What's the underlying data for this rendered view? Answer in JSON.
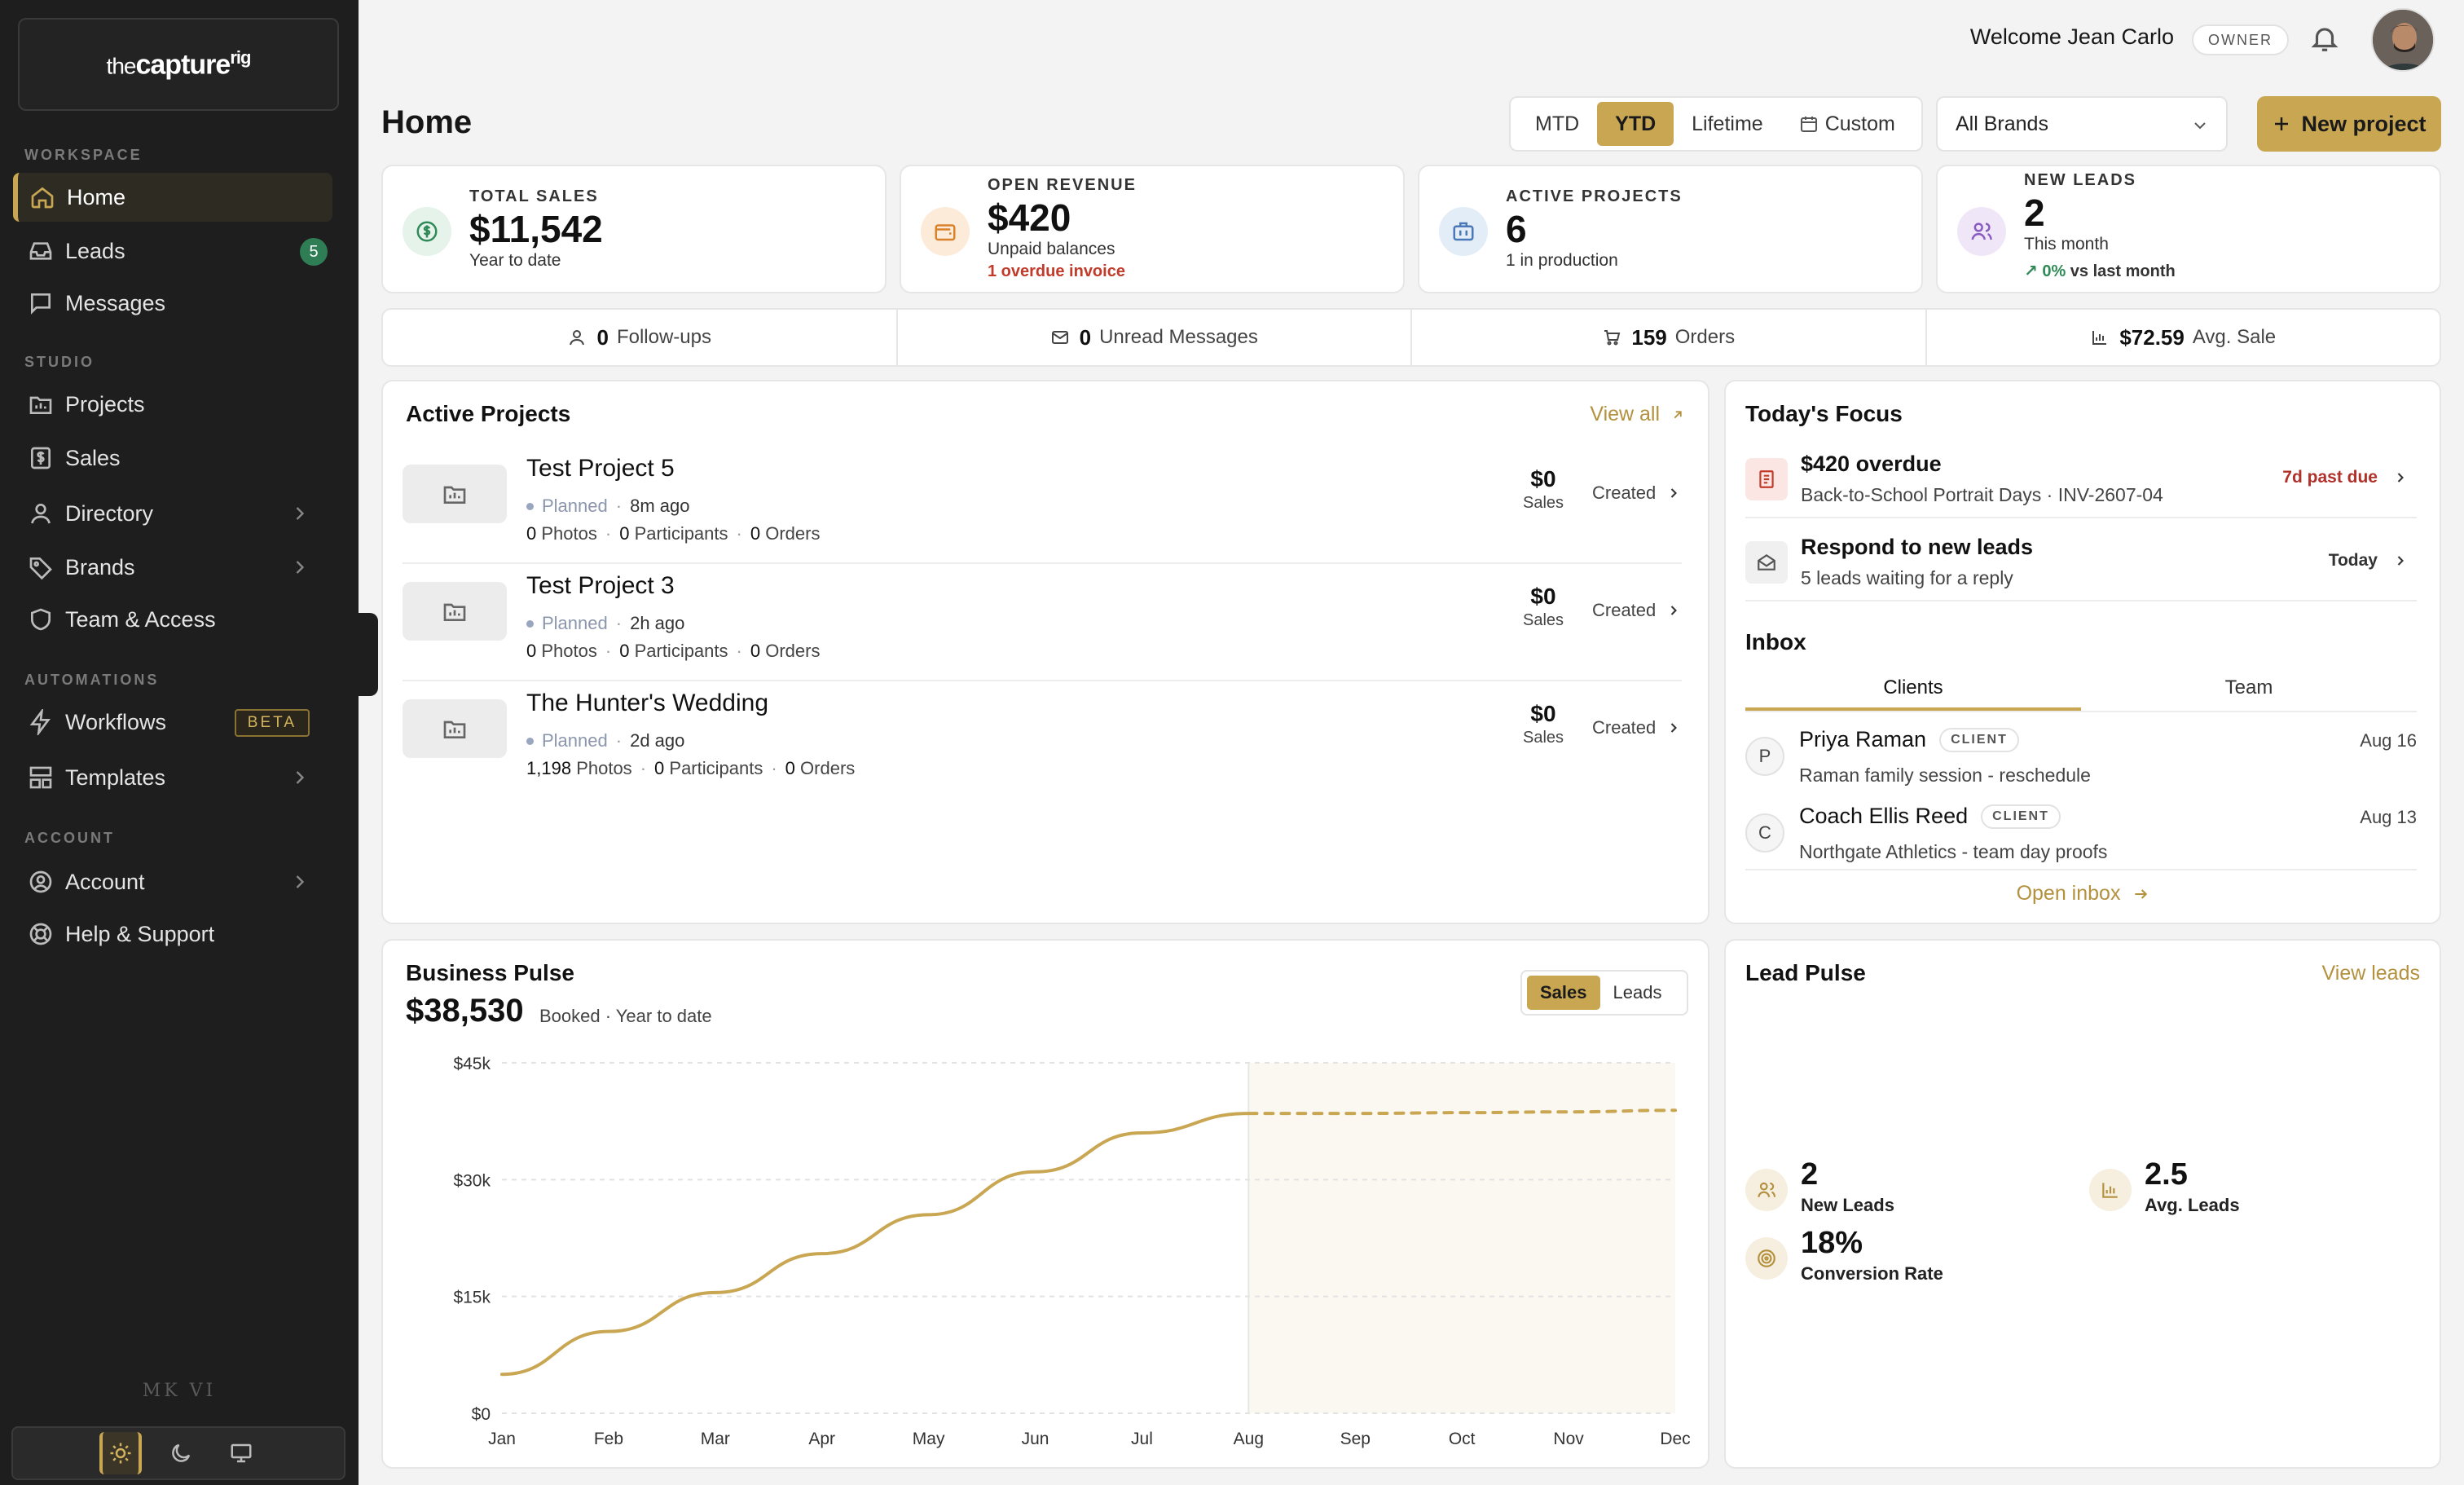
{
  "brand": {
    "logo_prefix": "the",
    "logo_main": "capture",
    "logo_sup": "rig"
  },
  "sidebar": {
    "sections": [
      "WORKSPACE",
      "STUDIO",
      "AUTOMATIONS",
      "ACCOUNT"
    ],
    "items": [
      {
        "label": "Home",
        "icon": "home-icon"
      },
      {
        "label": "Leads",
        "icon": "inbox-tray-icon",
        "badge": "5"
      },
      {
        "label": "Messages",
        "icon": "message-icon"
      },
      {
        "label": "Projects",
        "icon": "folder-chart-icon"
      },
      {
        "label": "Sales",
        "icon": "dollar-receipt-icon"
      },
      {
        "label": "Directory",
        "icon": "user-icon"
      },
      {
        "label": "Brands",
        "icon": "tag-icon"
      },
      {
        "label": "Team & Access",
        "icon": "shield-icon"
      },
      {
        "label": "Workflows",
        "icon": "lightning-icon",
        "badge": "BETA"
      },
      {
        "label": "Templates",
        "icon": "layout-icon"
      },
      {
        "label": "Account",
        "icon": "user-circle-icon"
      },
      {
        "label": "Help & Support",
        "icon": "lifebuoy-icon"
      }
    ],
    "footer_label": "MK VI",
    "theme_selected": "light"
  },
  "header": {
    "welcome": "Welcome Jean Carlo",
    "role": "OWNER",
    "title": "Home",
    "periods": [
      "MTD",
      "YTD",
      "Lifetime",
      "Custom"
    ],
    "period_selected": "YTD",
    "brand_filter": "All Brands",
    "new_project": "New project"
  },
  "stats": [
    {
      "label": "TOTAL SALES",
      "value": "$11,542",
      "sub": "Year to date",
      "color": "#2f8a57"
    },
    {
      "label": "OPEN REVENUE",
      "value": "$420",
      "sub": "Unpaid balances",
      "alert": "1 overdue invoice",
      "color": "#d9822b"
    },
    {
      "label": "ACTIVE PROJECTS",
      "value": "6",
      "sub": "1 in production",
      "color": "#4a78b8"
    },
    {
      "label": "NEW LEADS",
      "value": "2",
      "sub": "This month",
      "delta": "0%",
      "delta_suffix": " vs last month",
      "color": "#8a5cc2"
    }
  ],
  "mini_stats": [
    {
      "value": "0",
      "label": "Follow-ups"
    },
    {
      "value": "0",
      "label": "Unread Messages"
    },
    {
      "value": "159",
      "label": "Orders"
    },
    {
      "value": "$72.59",
      "label": "Avg. Sale"
    }
  ],
  "active_projects": {
    "title": "Active Projects",
    "view_all": "View all",
    "items": [
      {
        "name": "Test Project 5",
        "status": "Planned",
        "ago": "8m ago",
        "photos": "0",
        "participants": "0",
        "orders": "0",
        "sales": "$0",
        "stage": "Created"
      },
      {
        "name": "Test Project 3",
        "status": "Planned",
        "ago": "2h ago",
        "photos": "0",
        "participants": "0",
        "orders": "0",
        "sales": "$0",
        "stage": "Created"
      },
      {
        "name": "The Hunter's Wedding",
        "status": "Planned",
        "ago": "2d ago",
        "photos": "1,198",
        "participants": "0",
        "orders": "0",
        "sales": "$0",
        "stage": "Created"
      }
    ],
    "labels": {
      "photos": "Photos",
      "participants": "Participants",
      "orders": "Orders",
      "sales": "Sales"
    }
  },
  "focus": {
    "title": "Today's Focus",
    "items": [
      {
        "title": "$420 overdue",
        "sub": "Back-to-School Portrait Days · INV-2607-04",
        "right": "7d past due"
      },
      {
        "title": "Respond to new leads",
        "sub": "5 leads waiting for a reply",
        "right": "Today"
      }
    ]
  },
  "inbox": {
    "title": "Inbox",
    "tabs": [
      "Clients",
      "Team"
    ],
    "tab_selected": "Clients",
    "messages": [
      {
        "initial": "P",
        "name": "Priya Raman",
        "tag": "CLIENT",
        "sub": "Raman family session - reschedule",
        "date": "Aug 16"
      },
      {
        "initial": "C",
        "name": "Coach Ellis Reed",
        "tag": "CLIENT",
        "sub": "Northgate Athletics - team day proofs",
        "date": "Aug 13"
      }
    ],
    "open_link": "Open inbox"
  },
  "pulse": {
    "title": "Business Pulse",
    "value": "$38,530",
    "sub": "Booked · Year to date",
    "toggle": [
      "Sales",
      "Leads"
    ],
    "toggle_selected": "Sales"
  },
  "chart_data": {
    "type": "line",
    "x": [
      "Jan",
      "Feb",
      "Mar",
      "Apr",
      "May",
      "Jun",
      "Jul",
      "Aug",
      "Sep",
      "Oct",
      "Nov",
      "Dec"
    ],
    "series": [
      {
        "values": [
          5000,
          10500,
          15500,
          20500,
          25500,
          31000,
          36000,
          38500,
          null,
          null,
          null,
          null
        ]
      },
      {
        "style": "dashed",
        "values": [
          null,
          null,
          null,
          null,
          null,
          null,
          null,
          38500,
          38500,
          38600,
          38700,
          38900
        ]
      }
    ],
    "y_ticks": [
      "$0",
      "$15k",
      "$30k",
      "$45k"
    ],
    "y_tick_values": [
      0,
      15000,
      30000,
      45000
    ],
    "ylim": [
      0,
      45000
    ],
    "current_month_index": 7,
    "grid": true,
    "line_color": "#c9a652"
  },
  "lead_pulse": {
    "title": "Lead Pulse",
    "view_link": "View leads",
    "metrics": [
      {
        "value": "2",
        "label": "New Leads"
      },
      {
        "value": "2.5",
        "label": "Avg. Leads"
      },
      {
        "value": "18%",
        "label": "Conversion Rate"
      }
    ]
  }
}
